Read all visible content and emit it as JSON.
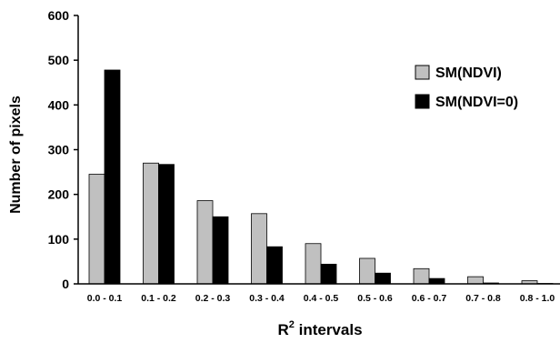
{
  "chart_data": {
    "type": "bar",
    "categories": [
      "0.0 - 0.1",
      "0.1 - 0.2",
      "0.2 - 0.3",
      "0.3 - 0.4",
      "0.4 - 0.5",
      "0.5 - 0.6",
      "0.6 - 0.7",
      "0.7 - 0.8",
      "0.8 - 1.0"
    ],
    "series": [
      {
        "name": "SM(NDVI)",
        "color": "#c0c0c0",
        "values": [
          245,
          270,
          186,
          157,
          90,
          57,
          34,
          16,
          7
        ]
      },
      {
        "name": "SM(NDVI=0)",
        "color": "#000000",
        "values": [
          478,
          267,
          150,
          83,
          44,
          24,
          12,
          2,
          1
        ]
      }
    ],
    "title": "",
    "xlabel": "intervals",
    "xlabel_prefix": "R",
    "xlabel_superscript": "2",
    "ylabel": "Number of pixels",
    "ylim": [
      0,
      600
    ],
    "yticks": [
      0,
      100,
      200,
      300,
      400,
      500,
      600
    ],
    "grid": false,
    "legend_position": "top-right"
  }
}
